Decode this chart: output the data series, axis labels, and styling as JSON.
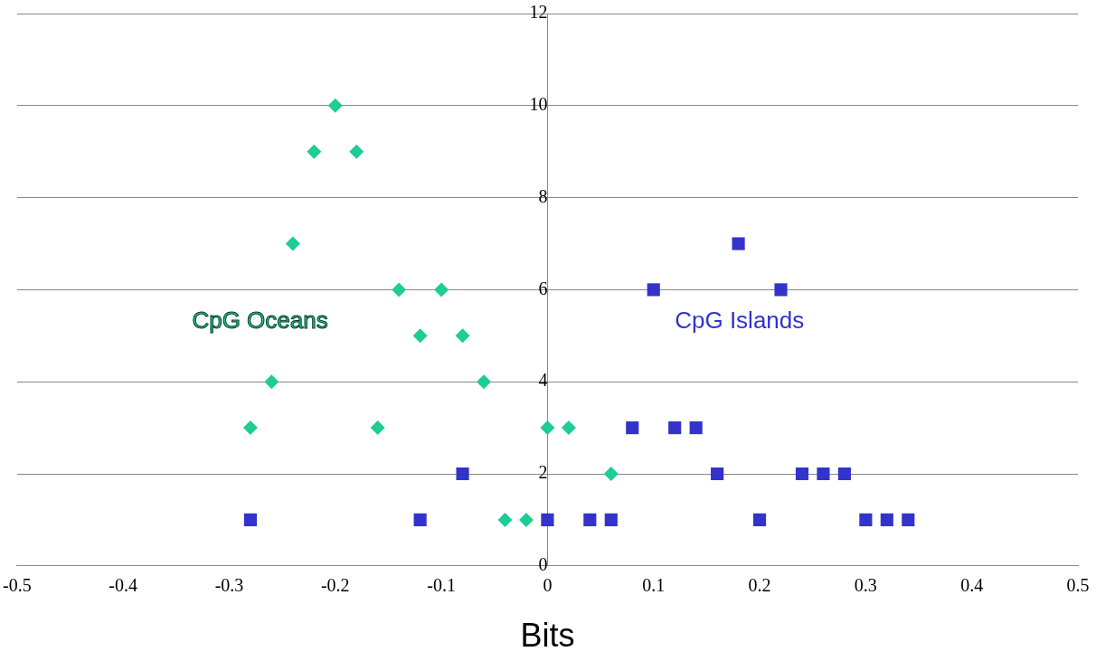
{
  "chart_data": {
    "type": "scatter",
    "xlabel": "Bits",
    "xlim": [
      -0.5,
      0.5
    ],
    "xticks": [
      -0.5,
      -0.4,
      -0.3,
      -0.2,
      -0.1,
      0,
      0.1,
      0.2,
      0.3,
      0.4,
      0.5
    ],
    "ylim": [
      0,
      12
    ],
    "yticks": [
      0,
      2,
      4,
      6,
      8,
      10,
      12
    ],
    "grid": "y",
    "legend": false,
    "series": [
      {
        "name": "CpG Oceans",
        "color": "#1ecc96",
        "marker": "diamond",
        "x": [
          -0.2,
          -0.22,
          -0.18,
          -0.24,
          -0.14,
          -0.1,
          -0.12,
          -0.08,
          -0.26,
          -0.06,
          -0.28,
          -0.16,
          0,
          0.02,
          0.06,
          -0.04,
          -0.02
        ],
        "values": [
          10,
          9,
          9,
          7,
          6,
          6,
          5,
          5,
          4,
          4,
          3,
          3,
          3,
          3,
          2,
          1,
          1
        ]
      },
      {
        "name": "CpG Islands",
        "color": "#3333cc",
        "marker": "square",
        "x": [
          -0.28,
          -0.12,
          -0.08,
          0,
          0.04,
          0.06,
          0.08,
          0.1,
          0.12,
          0.14,
          0.16,
          0.18,
          0.2,
          0.22,
          0.24,
          0.26,
          0.28,
          0.3,
          0.32,
          0.34
        ],
        "values": [
          1,
          1,
          2,
          1,
          1,
          1,
          3,
          6,
          3,
          3,
          2,
          7,
          1,
          6,
          2,
          2,
          2,
          1,
          1,
          1
        ]
      }
    ]
  }
}
